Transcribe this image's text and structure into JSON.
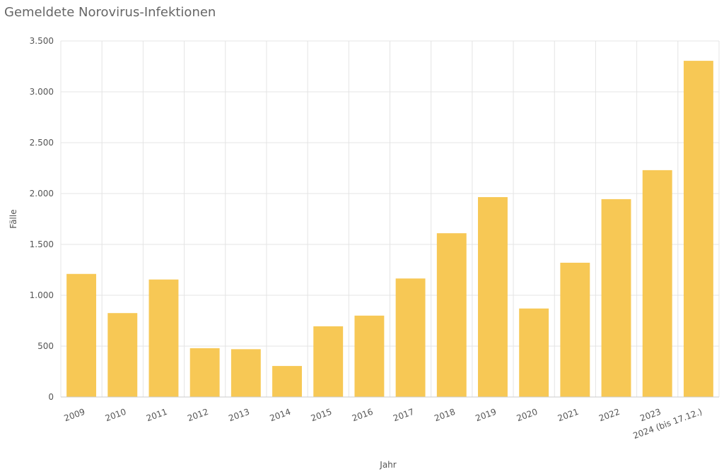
{
  "chart_data": {
    "type": "bar",
    "title": "Gemeldete Norovirus-Infektionen",
    "x_label": "Jahr",
    "y_label": "Fälle",
    "categories": [
      "2009",
      "2010",
      "2011",
      "2012",
      "2013",
      "2014",
      "2015",
      "2016",
      "2017",
      "2018",
      "2019",
      "2020",
      "2021",
      "2022",
      "2023",
      "2024 (bis 17.12.)"
    ],
    "values": [
      1210,
      825,
      1155,
      480,
      470,
      305,
      695,
      800,
      1165,
      1610,
      1965,
      870,
      1320,
      1945,
      2230,
      3305
    ],
    "color": "#f7c855",
    "ylim": [
      0,
      3500
    ],
    "yticks": [
      0,
      500,
      {
        "value": 1000,
        "label": "1.000"
      },
      {
        "value": 1500,
        "label": "1.500"
      },
      {
        "value": 2000,
        "label": "2.000"
      },
      {
        "value": 2500,
        "label": "2.500"
      },
      {
        "value": 3000,
        "label": "3.000"
      },
      {
        "value": 3500,
        "label": "3.500"
      }
    ],
    "grid": true
  }
}
